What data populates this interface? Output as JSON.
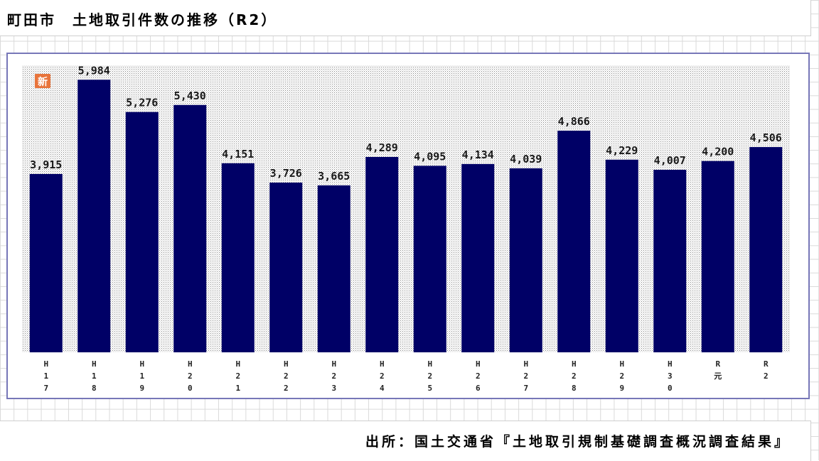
{
  "page": {
    "title": "町田市　土地取引件数の推移（R2）",
    "source": "出所：国土交通省『土地取引規制基礎調査概況調査結果』"
  },
  "colors": {
    "bar": "#000066",
    "frame": "#7777b8",
    "badge": "#e8743b"
  },
  "chart_data": {
    "type": "bar",
    "title": "町田市　土地取引件数の推移（R2）",
    "badge": "新",
    "categories": [
      [
        "H",
        "1",
        "7"
      ],
      [
        "H",
        "1",
        "8"
      ],
      [
        "H",
        "1",
        "9"
      ],
      [
        "H",
        "2",
        "0"
      ],
      [
        "H",
        "2",
        "1"
      ],
      [
        "H",
        "2",
        "2"
      ],
      [
        "H",
        "2",
        "3"
      ],
      [
        "H",
        "2",
        "4"
      ],
      [
        "H",
        "2",
        "5"
      ],
      [
        "H",
        "2",
        "6"
      ],
      [
        "H",
        "2",
        "7"
      ],
      [
        "H",
        "2",
        "8"
      ],
      [
        "H",
        "2",
        "9"
      ],
      [
        "H",
        "3",
        "0"
      ],
      [
        "R",
        "元"
      ],
      [
        "R",
        "2"
      ]
    ],
    "values": [
      3915,
      5984,
      5276,
      5430,
      4151,
      3726,
      3665,
      4289,
      4095,
      4134,
      4039,
      4866,
      4229,
      4007,
      4200,
      4506
    ],
    "value_labels": [
      "3,915",
      "5,984",
      "5,276",
      "5,430",
      "4,151",
      "3,726",
      "3,665",
      "4,289",
      "4,095",
      "4,134",
      "4,039",
      "4,866",
      "4,229",
      "4,007",
      "4,200",
      "4,506"
    ],
    "ylim": [
      0,
      6300
    ],
    "xlabel": "",
    "ylabel": "",
    "grid": false
  }
}
